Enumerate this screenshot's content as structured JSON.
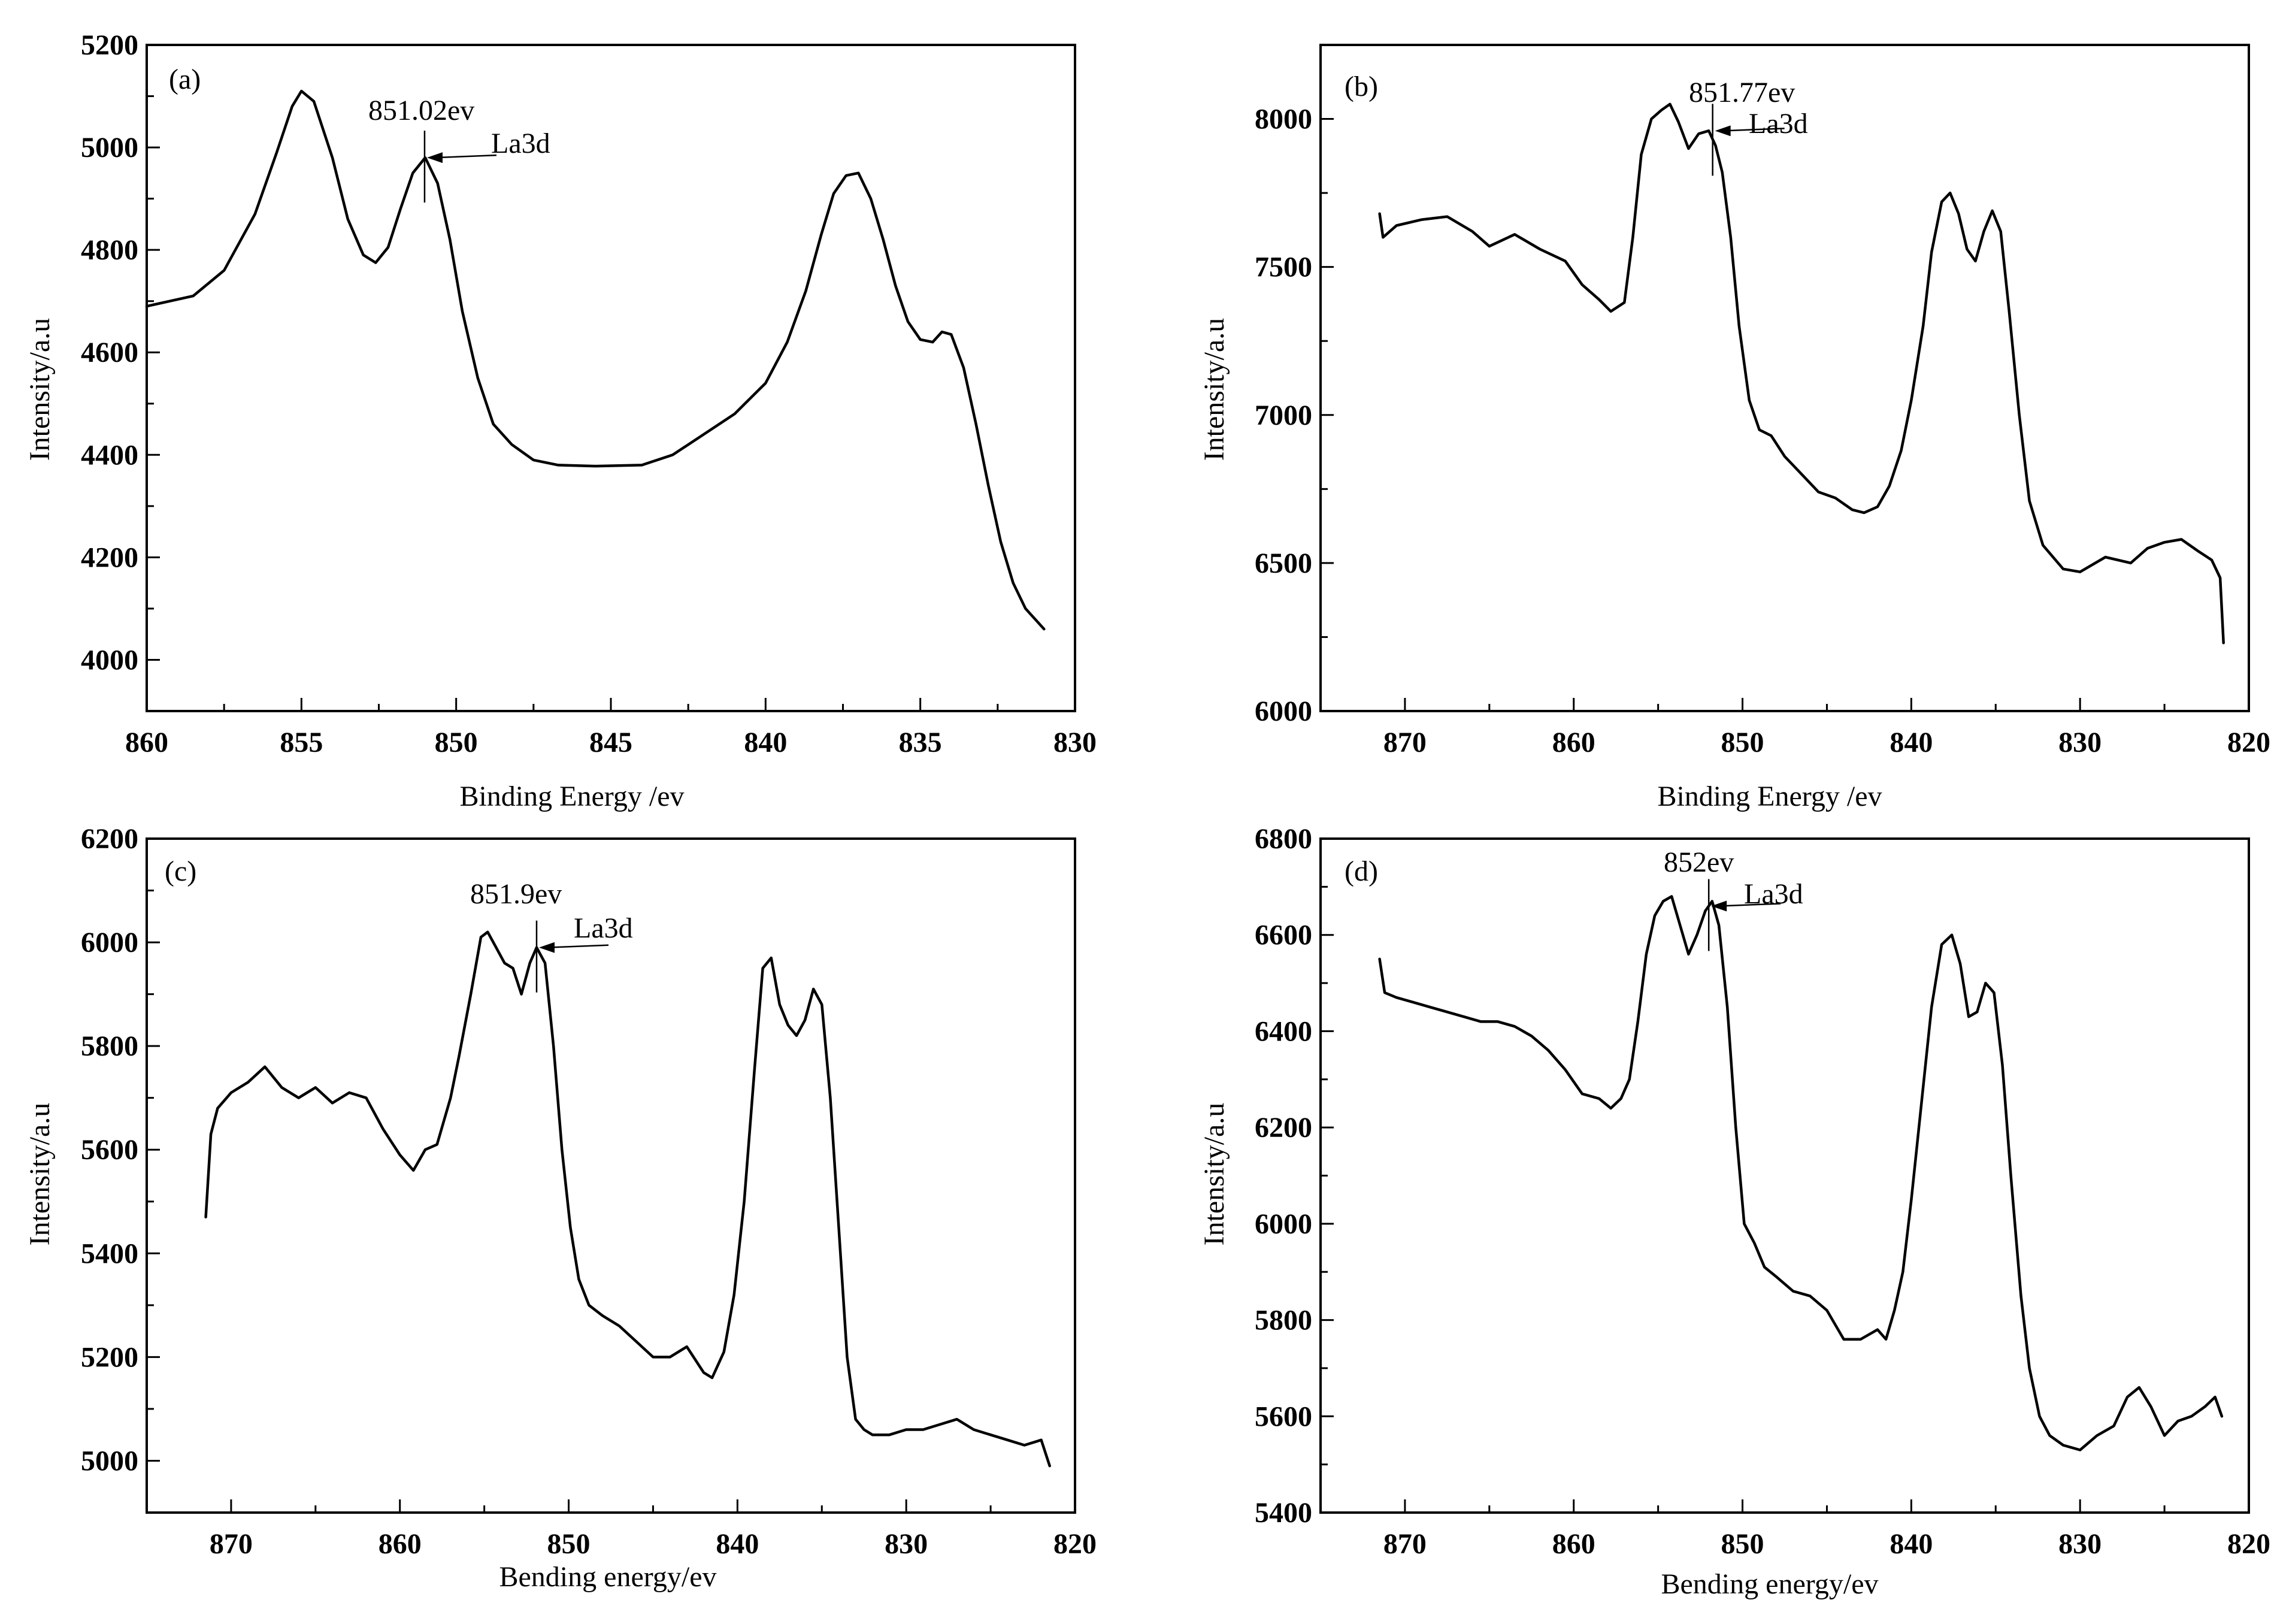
{
  "chart_data": [
    {
      "id": "a",
      "type": "line",
      "panel_label": "(a)",
      "xlabel": "Binding Energy /ev",
      "ylabel": "Intensity/a.u",
      "xlim": [
        860,
        830
      ],
      "ylim": [
        3900,
        5200
      ],
      "xticks": [
        860,
        855,
        850,
        845,
        840,
        835,
        830
      ],
      "yticks": [
        4000,
        4200,
        4400,
        4600,
        4800,
        5000,
        5200
      ],
      "annotation": {
        "text": "851.02ev",
        "arrow_label": "La3d",
        "x": 851.02,
        "y": 4980
      },
      "series": [
        {
          "name": "La3d (a)",
          "x": [
            860,
            858.5,
            857.5,
            856.5,
            855.8,
            855.3,
            855.0,
            854.6,
            854.0,
            853.5,
            853.0,
            852.6,
            852.2,
            851.8,
            851.4,
            851.0,
            850.6,
            850.2,
            849.8,
            849.3,
            848.8,
            848.2,
            847.5,
            846.7,
            845.5,
            844.0,
            843.0,
            842.0,
            841.0,
            840.0,
            839.3,
            838.7,
            838.2,
            837.8,
            837.4,
            837.0,
            836.6,
            836.2,
            835.8,
            835.4,
            835.0,
            834.6,
            834.3,
            834.0,
            833.6,
            833.2,
            832.8,
            832.4,
            832.0,
            831.6,
            831.0
          ],
          "values": [
            4690,
            4710,
            4760,
            4870,
            4990,
            5080,
            5110,
            5090,
            4980,
            4860,
            4790,
            4775,
            4805,
            4880,
            4950,
            4980,
            4930,
            4820,
            4680,
            4550,
            4460,
            4420,
            4390,
            4380,
            4378,
            4380,
            4400,
            4440,
            4480,
            4540,
            4620,
            4720,
            4830,
            4910,
            4945,
            4950,
            4900,
            4820,
            4730,
            4660,
            4625,
            4620,
            4640,
            4635,
            4570,
            4460,
            4340,
            4230,
            4150,
            4100,
            4060
          ]
        }
      ]
    },
    {
      "id": "b",
      "type": "line",
      "panel_label": "(b)",
      "xlabel": "Binding Energy /ev",
      "ylabel": "Intensity/a.u",
      "xlim": [
        875,
        820
      ],
      "ylim": [
        6000,
        8250
      ],
      "xticks": [
        870,
        860,
        850,
        840,
        830,
        820
      ],
      "yticks": [
        6000,
        6500,
        7000,
        7500,
        8000
      ],
      "annotation": {
        "text": "851.77ev",
        "arrow_label": "La3d",
        "x": 851.77,
        "y": 7960
      },
      "series": [
        {
          "name": "La3d (b)",
          "x": [
            871.5,
            871.3,
            870.5,
            869.0,
            867.5,
            866.0,
            865.0,
            863.5,
            862.0,
            860.5,
            859.5,
            858.5,
            857.8,
            857.0,
            856.5,
            856.0,
            855.4,
            854.8,
            854.3,
            853.8,
            853.2,
            852.6,
            852.0,
            851.6,
            851.2,
            850.7,
            850.2,
            849.6,
            849.0,
            848.3,
            847.5,
            846.5,
            845.5,
            844.5,
            843.5,
            842.8,
            842.0,
            841.3,
            840.6,
            840.0,
            839.3,
            838.8,
            838.2,
            837.7,
            837.2,
            836.7,
            836.2,
            835.7,
            835.2,
            834.7,
            834.2,
            833.6,
            833.0,
            832.2,
            831.0,
            830.0,
            828.5,
            827.0,
            826.0,
            825.0,
            824.0,
            823.0,
            822.2,
            821.7,
            821.5
          ],
          "values": [
            7680,
            7600,
            7640,
            7660,
            7670,
            7620,
            7570,
            7610,
            7560,
            7520,
            7440,
            7390,
            7350,
            7380,
            7600,
            7880,
            8000,
            8030,
            8050,
            7990,
            7900,
            7950,
            7960,
            7910,
            7820,
            7600,
            7300,
            7050,
            6950,
            6930,
            6860,
            6800,
            6740,
            6720,
            6680,
            6670,
            6690,
            6760,
            6880,
            7050,
            7300,
            7550,
            7720,
            7750,
            7680,
            7560,
            7520,
            7620,
            7690,
            7620,
            7350,
            7000,
            6710,
            6560,
            6480,
            6470,
            6520,
            6500,
            6550,
            6570,
            6580,
            6540,
            6510,
            6450,
            6230
          ]
        }
      ]
    },
    {
      "id": "c",
      "type": "line",
      "panel_label": "(c)",
      "xlabel": "Bending energy/ev",
      "ylabel": "Intensity/a.u",
      "xlim": [
        875,
        820
      ],
      "ylim": [
        4900,
        6200
      ],
      "xticks": [
        870,
        860,
        850,
        840,
        830,
        820
      ],
      "yticks": [
        5000,
        5200,
        5400,
        5600,
        5800,
        6000,
        6200
      ],
      "annotation": {
        "text": "851.9ev",
        "arrow_label": "La3d",
        "x": 851.9,
        "y": 5990
      },
      "series": [
        {
          "name": "La3d (c)",
          "x": [
            871.5,
            871.2,
            870.8,
            870.0,
            869.0,
            868.0,
            867.0,
            866.0,
            865.0,
            864.0,
            863.0,
            862.0,
            861.0,
            860.0,
            859.2,
            858.5,
            857.8,
            857.0,
            856.5,
            855.8,
            855.2,
            854.8,
            854.3,
            853.8,
            853.3,
            852.8,
            852.3,
            851.9,
            851.4,
            850.9,
            850.4,
            849.9,
            849.4,
            848.8,
            848.0,
            847.0,
            846.0,
            845.0,
            844.0,
            843.0,
            842.0,
            841.5,
            840.8,
            840.2,
            839.6,
            839.0,
            838.5,
            838.0,
            837.5,
            837.0,
            836.5,
            836.0,
            835.5,
            835.0,
            834.5,
            834.0,
            833.5,
            833.0,
            832.5,
            832.0,
            831.0,
            830.0,
            829.0,
            828.0,
            827.0,
            826.0,
            825.0,
            824.0,
            823.0,
            822.0,
            821.5
          ],
          "values": [
            5470,
            5630,
            5680,
            5710,
            5730,
            5760,
            5720,
            5700,
            5720,
            5690,
            5710,
            5700,
            5640,
            5590,
            5560,
            5600,
            5610,
            5700,
            5780,
            5900,
            6010,
            6020,
            5990,
            5960,
            5950,
            5900,
            5960,
            5990,
            5960,
            5800,
            5600,
            5450,
            5350,
            5300,
            5280,
            5260,
            5230,
            5200,
            5200,
            5220,
            5170,
            5160,
            5210,
            5320,
            5500,
            5750,
            5950,
            5970,
            5880,
            5840,
            5820,
            5850,
            5910,
            5880,
            5700,
            5450,
            5200,
            5080,
            5060,
            5050,
            5050,
            5060,
            5060,
            5070,
            5080,
            5060,
            5050,
            5040,
            5030,
            5040,
            4990
          ]
        }
      ]
    },
    {
      "id": "d",
      "type": "line",
      "panel_label": "(d)",
      "xlabel": "Bending energy/ev",
      "ylabel": "Intensity/a.u",
      "xlim": [
        875,
        820
      ],
      "ylim": [
        5400,
        6800
      ],
      "xticks": [
        870,
        860,
        850,
        840,
        830,
        820
      ],
      "yticks": [
        5400,
        5600,
        5800,
        6000,
        6200,
        6400,
        6600,
        6800
      ],
      "annotation": {
        "text": "852ev",
        "arrow_label": "La3d",
        "x": 852.0,
        "y": 6660
      },
      "series": [
        {
          "name": "La3d (d)",
          "x": [
            871.5,
            871.2,
            870.5,
            869.5,
            868.5,
            867.5,
            866.5,
            865.5,
            864.5,
            863.5,
            862.5,
            861.5,
            860.5,
            859.5,
            858.5,
            857.8,
            857.2,
            856.7,
            856.2,
            855.7,
            855.2,
            854.7,
            854.2,
            853.7,
            853.2,
            852.7,
            852.2,
            851.8,
            851.4,
            850.9,
            850.4,
            849.9,
            849.3,
            848.7,
            848.0,
            847.0,
            846.0,
            845.0,
            844.0,
            843.0,
            842.0,
            841.5,
            841.0,
            840.5,
            840.0,
            839.4,
            838.8,
            838.2,
            837.6,
            837.1,
            836.6,
            836.1,
            835.6,
            835.1,
            834.6,
            834.1,
            833.5,
            833.0,
            832.4,
            831.8,
            831.0,
            830.0,
            829.0,
            828.0,
            827.2,
            826.5,
            825.8,
            825.0,
            824.2,
            823.4,
            822.6,
            822.0,
            821.6
          ],
          "values": [
            6550,
            6480,
            6470,
            6460,
            6450,
            6440,
            6430,
            6420,
            6420,
            6410,
            6390,
            6360,
            6320,
            6270,
            6260,
            6240,
            6260,
            6300,
            6420,
            6560,
            6640,
            6670,
            6680,
            6620,
            6560,
            6600,
            6650,
            6670,
            6620,
            6450,
            6200,
            6000,
            5960,
            5910,
            5890,
            5860,
            5850,
            5820,
            5760,
            5760,
            5780,
            5760,
            5820,
            5900,
            6050,
            6250,
            6450,
            6580,
            6600,
            6540,
            6430,
            6440,
            6500,
            6480,
            6330,
            6100,
            5850,
            5700,
            5600,
            5560,
            5540,
            5530,
            5560,
            5580,
            5640,
            5660,
            5620,
            5560,
            5590,
            5600,
            5620,
            5640,
            5600
          ]
        }
      ]
    }
  ]
}
